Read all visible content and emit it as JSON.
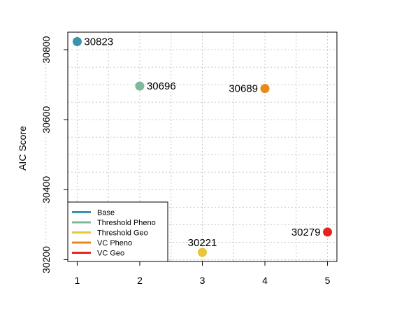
{
  "chart_data": {
    "type": "scatter",
    "xlabel": "",
    "ylabel": "AIC Score",
    "xlim": [
      0.85,
      5.15
    ],
    "ylim": [
      30195,
      30850
    ],
    "x_ticks": [
      "1",
      "2",
      "3",
      "4",
      "5"
    ],
    "y_ticks": [
      "30200",
      "30400",
      "30600",
      "30800"
    ],
    "grid": true,
    "legend_position": "bottom-left",
    "series": [
      {
        "name": "Base",
        "x": 1,
        "y": 30823,
        "label": "30823",
        "color": "#3A93AE",
        "label_side": "right"
      },
      {
        "name": "Threshold Pheno",
        "x": 2,
        "y": 30696,
        "label": "30696",
        "color": "#7DB99A",
        "label_side": "right"
      },
      {
        "name": "Threshold Geo",
        "x": 3,
        "y": 30221,
        "label": "30221",
        "color": "#E8C53A",
        "label_side": "top"
      },
      {
        "name": "VC Pheno",
        "x": 4,
        "y": 30689,
        "label": "30689",
        "color": "#E88A1A",
        "label_side": "left"
      },
      {
        "name": "VC Geo",
        "x": 5,
        "y": 30279,
        "label": "30279",
        "color": "#E8221E",
        "label_side": "left"
      }
    ]
  }
}
